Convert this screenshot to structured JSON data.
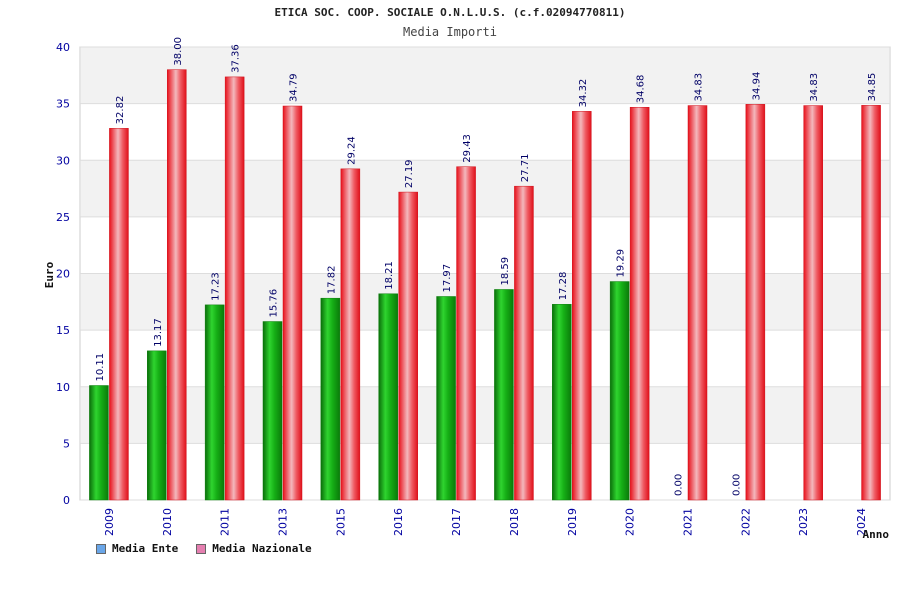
{
  "header": {
    "title": "ETICA SOC. COOP. SOCIALE O.N.L.U.S. (c.f.02094770811)",
    "subtitle": "Media Importi"
  },
  "legend": {
    "items": [
      {
        "label": "Media Ente",
        "color": "#6aa6e8"
      },
      {
        "label": "Media Nazionale",
        "color": "#e57fb0"
      }
    ]
  },
  "colors": {
    "ente_bar": "#12a312",
    "nazionale_bar": "#ee1c24",
    "axis_text": "#0000a0",
    "grid_band": "#f2f2f2"
  },
  "chart_data": {
    "type": "bar",
    "title": "Media Importi",
    "xlabel": "Anno",
    "ylabel": "Euro",
    "ylim": [
      0,
      40
    ],
    "yticks": [
      0,
      5,
      10,
      15,
      20,
      25,
      30,
      35,
      40
    ],
    "categories": [
      "2009",
      "2010",
      "2011",
      "2013",
      "2015",
      "2016",
      "2017",
      "2018",
      "2019",
      "2020",
      "2021",
      "2022",
      "2023",
      "2024"
    ],
    "series": [
      {
        "name": "Media Ente",
        "values": [
          10.11,
          13.17,
          17.23,
          15.76,
          17.82,
          18.21,
          17.97,
          18.59,
          17.28,
          19.29,
          0,
          0,
          null,
          null
        ],
        "labels": [
          "10.11",
          "13.17",
          "17.23",
          "15.76",
          "17.82",
          "18.21",
          "17.97",
          "18.59",
          "17.28",
          "19.29",
          "0.00",
          "0.00",
          "",
          ""
        ]
      },
      {
        "name": "Media Nazionale",
        "values": [
          32.82,
          38.0,
          37.36,
          34.79,
          29.24,
          27.19,
          29.43,
          27.71,
          34.32,
          34.68,
          34.83,
          34.94,
          34.83,
          34.85
        ],
        "labels": [
          "32.82",
          "38.00",
          "37.36",
          "34.79",
          "29.24",
          "27.19",
          "29.43",
          "27.71",
          "34.32",
          "34.68",
          "34.83",
          "34.94",
          "34.83",
          "34.85"
        ]
      }
    ],
    "grid": true,
    "legend_position": "bottom-left"
  }
}
